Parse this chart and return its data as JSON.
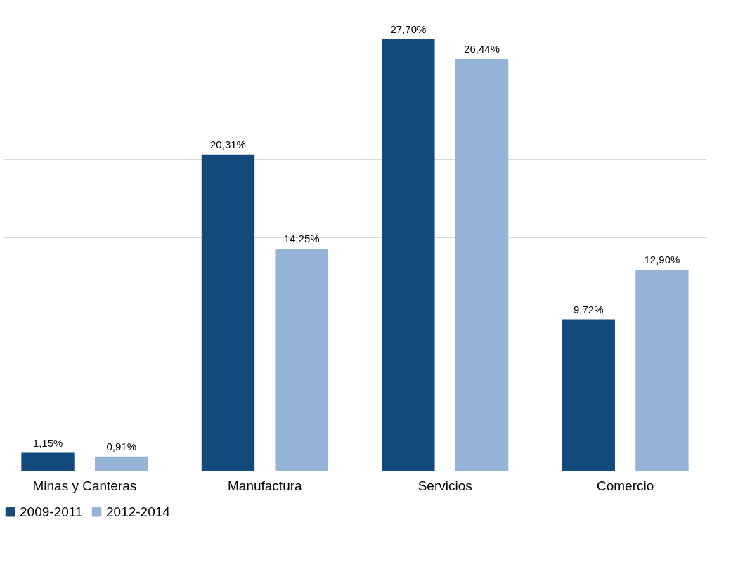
{
  "chart_data": {
    "type": "bar",
    "categories": [
      "Minas y Canteras",
      "Manufactura",
      "Servicios",
      "Comercio"
    ],
    "series": [
      {
        "name": "2009-2011",
        "color": "#134a7c",
        "values": [
          1.15,
          20.31,
          27.7,
          9.72
        ],
        "value_labels": [
          "1,15%",
          "20,31%",
          "27,70%",
          "9,72%"
        ]
      },
      {
        "name": "2012-2014",
        "color": "#95b3d7",
        "values": [
          0.91,
          14.25,
          26.44,
          12.9
        ],
        "value_labels": [
          "0,91%",
          "14,25%",
          "26,44%",
          "12,90%"
        ]
      }
    ],
    "ylim": [
      0,
      30
    ],
    "yticks": [
      {
        "value": 0,
        "label": null
      },
      {
        "value": 5,
        "label": null
      },
      {
        "value": 10,
        "label": null
      },
      {
        "value": 15,
        "label": null
      },
      {
        "value": 20,
        "label": null
      },
      {
        "value": 25,
        "label": null
      },
      {
        "value": 30,
        "label": null
      }
    ],
    "tick_labels": "x",
    "grid": "y",
    "legend": "bottom"
  }
}
